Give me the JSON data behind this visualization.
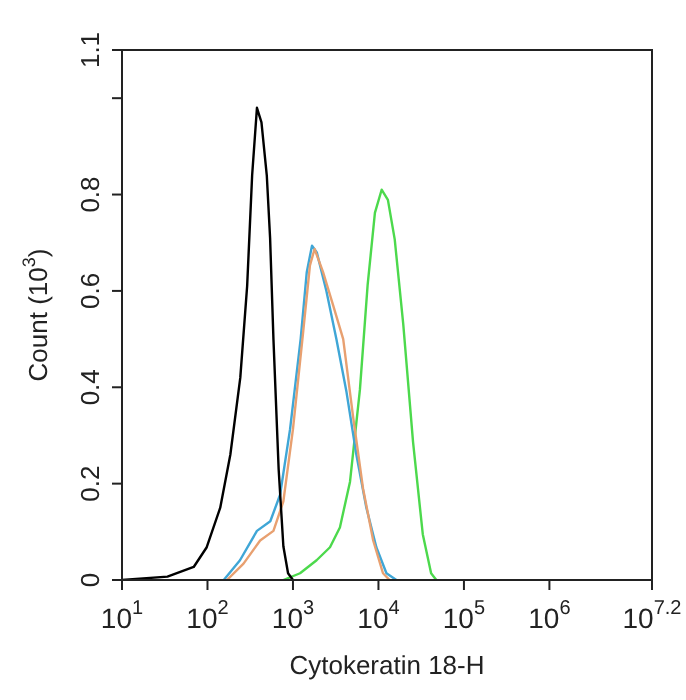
{
  "chart_data": {
    "type": "line",
    "xlabel": "Cytokeratin 18-H",
    "ylabel": "Count (10$^{3}$)",
    "log": "x",
    "xlim": [
      10,
      15848932
    ],
    "ylim": [
      0,
      1.1
    ],
    "xticks": [
      {
        "value": 10,
        "label": "10$^{1}$"
      },
      {
        "value": 100,
        "label": "10$^{2}$"
      },
      {
        "value": 1000,
        "label": "10$^{3}$"
      },
      {
        "value": 10000,
        "label": "10$^{4}$"
      },
      {
        "value": 100000,
        "label": "10$^{5}$"
      },
      {
        "value": 1000000,
        "label": "10$^{6}$"
      },
      {
        "value": 15848932,
        "label": "10$^{7.2}$"
      }
    ],
    "yticks": [
      0,
      0.2,
      0.4,
      0.6,
      0.8,
      {
        "value": 1,
        "label": null
      },
      1.1
    ],
    "series": [
      {
        "color": "#000000",
        "x": [
          10,
          34,
          69,
          98,
          141,
          185,
          242,
          291,
          333,
          379,
          428,
          494,
          540,
          591,
          680,
          772,
          876,
          1000
        ],
        "values": [
          0,
          0.007,
          0.027,
          0.068,
          0.15,
          0.26,
          0.42,
          0.61,
          0.84,
          0.98,
          0.95,
          0.84,
          0.71,
          0.5,
          0.23,
          0.07,
          0.014,
          0
        ]
      },
      {
        "color": "#e8a070",
        "x": [
          169,
          264,
          413,
          591,
          772,
          1000,
          1320,
          1580,
          1790,
          2250,
          2940,
          3870,
          5040,
          6600,
          8680,
          11300,
          13500
        ],
        "values": [
          0,
          0.034,
          0.082,
          0.102,
          0.163,
          0.313,
          0.517,
          0.653,
          0.687,
          0.639,
          0.571,
          0.5,
          0.34,
          0.19,
          0.082,
          0.014,
          0
        ]
      },
      {
        "color": "#3fa6d6",
        "x": [
          155,
          240,
          379,
          543,
          707,
          925,
          1230,
          1450,
          1670,
          1900,
          2460,
          3220,
          4230,
          5520,
          7220,
          9450,
          12400,
          16200
        ],
        "values": [
          0,
          0.041,
          0.102,
          0.122,
          0.177,
          0.313,
          0.5,
          0.639,
          0.694,
          0.68,
          0.6,
          0.5,
          0.39,
          0.26,
          0.15,
          0.068,
          0.014,
          0
        ]
      },
      {
        "color": "#4cd94c",
        "x": [
          772,
          1210,
          1890,
          2710,
          3540,
          4650,
          6070,
          7470,
          9090,
          10900,
          12900,
          15500,
          19500,
          25400,
          33000,
          41300,
          47500
        ],
        "values": [
          0,
          0.014,
          0.041,
          0.068,
          0.109,
          0.204,
          0.395,
          0.612,
          0.762,
          0.81,
          0.789,
          0.707,
          0.531,
          0.286,
          0.095,
          0.014,
          0
        ]
      }
    ]
  }
}
